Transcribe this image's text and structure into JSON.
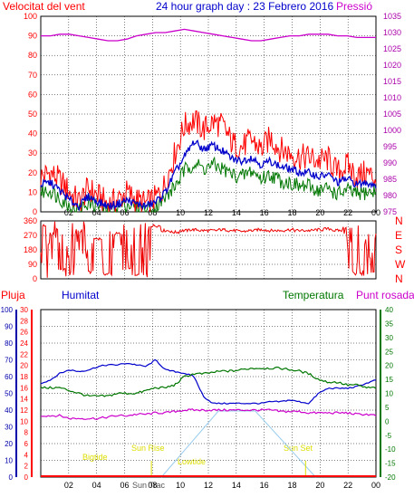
{
  "header": {
    "left_title": "Velocitat del vent",
    "center_title": "24 hour graph day : 23 Febrero 2016",
    "right_title": "Pressió"
  },
  "colors": {
    "wind": "#ff0000",
    "avg": "#0000cc",
    "green": "#007700",
    "pressure": "#cc00cc",
    "dir": "#ee0000",
    "sun": "#99ccee",
    "yellow": "#dddd00",
    "grid": "#000000",
    "axis_blue": "#0000aa",
    "axis_red": "#ff0000",
    "axis_green": "#007700",
    "axis_magenta": "#aa00aa"
  },
  "chart_data": [
    {
      "type": "line",
      "name": "wind-pressure",
      "x_ticks": [
        "02",
        "04",
        "06",
        "08",
        "10",
        "12",
        "14",
        "16",
        "18",
        "20",
        "22",
        "00"
      ],
      "y_left_ticks": [
        "0",
        "10",
        "20",
        "30",
        "40",
        "50",
        "60",
        "70",
        "80",
        "90",
        "100"
      ],
      "y_right_ticks": [
        "975",
        "980",
        "985",
        "990",
        "995",
        "1000",
        "1005",
        "1010",
        "1015",
        "1020",
        "1025",
        "1030",
        "1035"
      ],
      "ylim_left": [
        0,
        100
      ],
      "ylim_right": [
        975,
        1035
      ],
      "series": [
        {
          "key": "gust",
          "values": [
            18,
            20,
            16,
            10,
            5,
            12,
            8,
            4,
            6,
            10,
            6,
            4,
            7,
            14,
            30,
            44,
            47,
            42,
            46,
            44,
            35,
            33,
            37,
            32,
            38,
            32,
            30,
            28,
            28,
            26,
            27,
            20,
            24,
            18,
            20,
            17
          ]
        },
        {
          "key": "avg",
          "values": [
            14,
            15,
            11,
            6,
            3,
            8,
            5,
            3,
            4,
            6,
            4,
            3,
            5,
            10,
            20,
            28,
            36,
            32,
            34,
            31,
            27,
            26,
            28,
            24,
            26,
            23,
            22,
            20,
            20,
            18,
            19,
            15,
            17,
            14,
            15,
            14
          ]
        },
        {
          "key": "low",
          "values": [
            10,
            11,
            7,
            3,
            1,
            5,
            3,
            1,
            2,
            4,
            2,
            1,
            3,
            7,
            13,
            21,
            25,
            22,
            24,
            22,
            19,
            18,
            21,
            17,
            19,
            16,
            15,
            13,
            13,
            11,
            12,
            9,
            11,
            9,
            10,
            10
          ]
        },
        {
          "key": "pressure",
          "values": [
            1029,
            1029,
            1029.5,
            1029.5,
            1029,
            1028.5,
            1028,
            1027.5,
            1027.5,
            1028,
            1029,
            1029.5,
            1030,
            1030,
            1030.5,
            1031,
            1030.5,
            1030,
            1029.5,
            1029,
            1028.5,
            1028,
            1027.5,
            1027.5,
            1028,
            1028.5,
            1029,
            1029,
            1029.5,
            1029.5,
            1029.5,
            1029,
            1029,
            1028.5,
            1028.5,
            1028.5
          ]
        }
      ]
    },
    {
      "type": "line",
      "name": "wind-direction",
      "x_ticks": [
        "02",
        "04",
        "06",
        "08",
        "10",
        "12",
        "14",
        "16",
        "18",
        "20",
        "22",
        "00"
      ],
      "y_left_ticks": [
        "0",
        "90",
        "180",
        "270",
        "360"
      ],
      "y_right_labels": [
        "N",
        "W",
        "S",
        "E",
        "N"
      ],
      "ylim": [
        0,
        360
      ],
      "series": [
        {
          "key": "direction",
          "values": [
            330,
            280,
            60,
            20,
            300,
            40,
            250,
            30,
            280,
            60,
            20,
            30,
            330,
            300,
            290,
            300,
            305,
            300,
            300,
            305,
            300,
            295,
            300,
            305,
            300,
            300,
            305,
            300,
            300,
            305,
            310,
            300,
            320,
            30,
            25,
            40
          ]
        }
      ]
    },
    {
      "type": "line",
      "name": "weather",
      "legend": [
        "Pluja",
        "Humitat",
        "Temperatura",
        "Punt rosada"
      ],
      "x_ticks": [
        "02",
        "04",
        "06",
        "08",
        "10",
        "12",
        "14",
        "16",
        "18",
        "20",
        "22",
        "00"
      ],
      "y_rain_ticks": [
        "0",
        "2",
        "4",
        "6",
        "8",
        "10",
        "12",
        "14",
        "16",
        "18",
        "20",
        "22",
        "24",
        "26",
        "28",
        "30"
      ],
      "y_hum_ticks": [
        "0",
        "10",
        "20",
        "30",
        "40",
        "50",
        "60",
        "70",
        "80",
        "90",
        "100"
      ],
      "y_temp_ticks": [
        "-20",
        "-15",
        "-10",
        "-5",
        "0",
        "5",
        "10",
        "15",
        "20",
        "25",
        "30",
        "35",
        "40"
      ],
      "ylim_hum": [
        0,
        100
      ],
      "ylim_temp": [
        -20,
        40
      ],
      "series": [
        {
          "key": "humidity",
          "values": [
            56,
            58,
            62,
            64,
            63,
            64,
            66,
            67,
            67,
            68,
            67,
            66,
            70,
            64,
            63,
            62,
            60,
            48,
            44,
            44,
            44,
            44,
            44,
            44,
            45,
            45,
            46,
            45,
            44,
            50,
            53,
            53,
            53,
            54,
            56,
            58
          ]
        },
        {
          "key": "temperature",
          "values": [
            12,
            12,
            12,
            11,
            10,
            9,
            9,
            9,
            10,
            10,
            10,
            11,
            12,
            12,
            13,
            16,
            17,
            17,
            17.5,
            18,
            18,
            18.5,
            19,
            19,
            19,
            19,
            18.5,
            18,
            17,
            15,
            14,
            14,
            13,
            13,
            12,
            12
          ]
        },
        {
          "key": "dewpoint",
          "values": [
            2,
            2,
            2,
            1,
            1,
            1,
            1,
            1.5,
            2,
            2,
            2.5,
            2.5,
            3,
            3,
            3.5,
            4,
            4,
            4,
            4,
            4,
            4,
            4,
            4,
            4,
            4,
            3.5,
            3.5,
            3.5,
            3,
            3,
            3,
            3,
            3,
            2.5,
            2.5,
            2
          ]
        }
      ],
      "annotations": [
        "Sun Rise",
        "Sun Set",
        "Bigtide",
        "Lowtide",
        "Sun Trac"
      ]
    }
  ]
}
